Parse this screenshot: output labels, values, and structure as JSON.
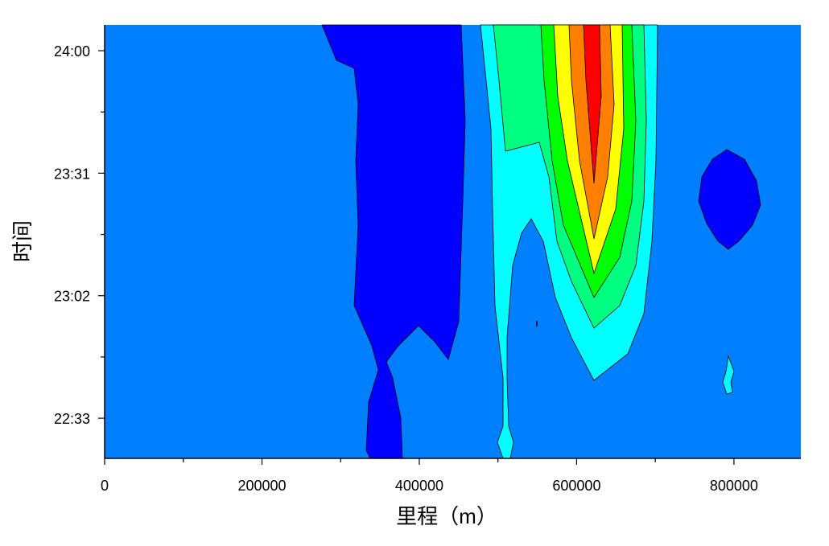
{
  "chart_data": {
    "type": "contour",
    "xlabel": "里程（m）",
    "ylabel": "时间",
    "xlim": [
      0,
      885000
    ],
    "xticks": [
      0,
      200000,
      400000,
      600000,
      800000
    ],
    "ylim": [
      1343.5,
      1446.1
    ],
    "yticks": [
      {
        "value": 1353,
        "label": "22:33"
      },
      {
        "value": 1382,
        "label": "23:02"
      },
      {
        "value": 1411,
        "label": "23:31"
      },
      {
        "value": 1440,
        "label": "24:00"
      }
    ]
  }
}
